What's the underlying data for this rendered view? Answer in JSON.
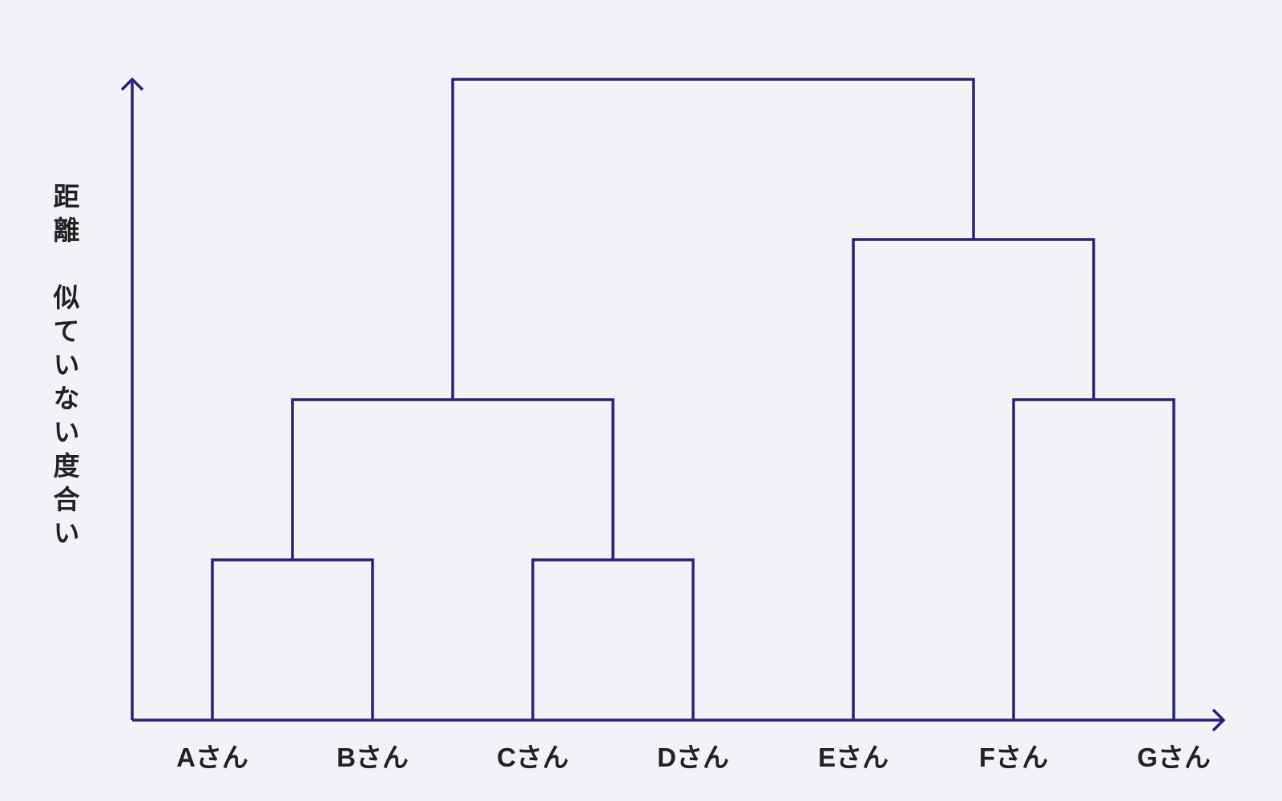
{
  "chart_data": {
    "type": "dendrogram",
    "y_label": "距離　似ていない度合い",
    "categories": [
      "Aさん",
      "Bさん",
      "Cさん",
      "Dさん",
      "Eさん",
      "Fさん",
      "Gさん"
    ],
    "merges": [
      {
        "left": 0,
        "right": 1,
        "height": 1
      },
      {
        "left": 2,
        "right": 3,
        "height": 1
      },
      {
        "left": 7,
        "right": 8,
        "height": 2
      },
      {
        "left": 5,
        "right": 6,
        "height": 2
      },
      {
        "left": 4,
        "right": 10,
        "height": 3
      },
      {
        "left": 9,
        "right": 11,
        "height": 4
      }
    ],
    "ylim": [
      0,
      4
    ],
    "color": "#2a1f7a"
  }
}
